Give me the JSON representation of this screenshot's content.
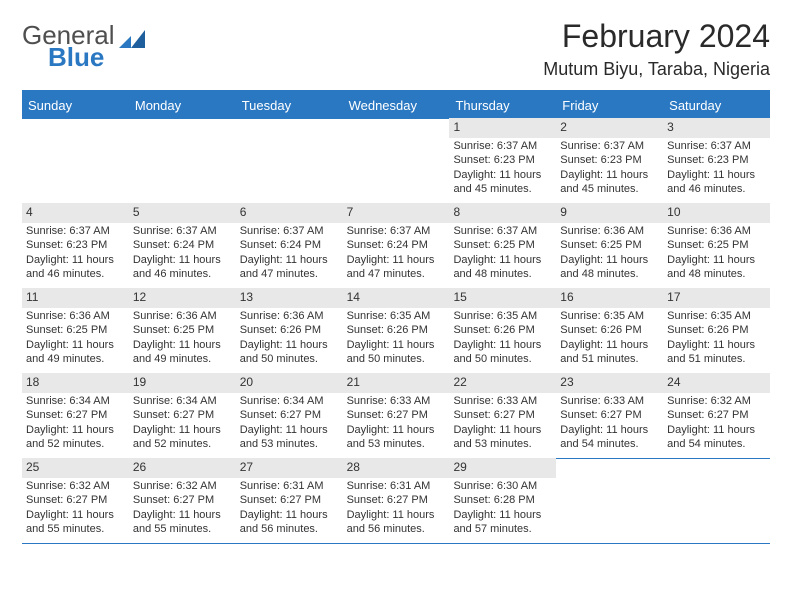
{
  "brand": {
    "part1": "General",
    "part2": "Blue"
  },
  "title": "February 2024",
  "location": "Mutum Biyu, Taraba, Nigeria",
  "colors": {
    "accent": "#2b78c2",
    "band": "#e8e8e8",
    "text": "#333333",
    "bg": "#ffffff"
  },
  "fonts": {
    "title_size": 32,
    "subtitle_size": 18,
    "header_cell_size": 13,
    "body_size": 11,
    "daynum_size": 12
  },
  "weekdays": [
    "Sunday",
    "Monday",
    "Tuesday",
    "Wednesday",
    "Thursday",
    "Friday",
    "Saturday"
  ],
  "weeks": [
    [
      {
        "n": "",
        "sr": "",
        "ss": "",
        "dl": ""
      },
      {
        "n": "",
        "sr": "",
        "ss": "",
        "dl": ""
      },
      {
        "n": "",
        "sr": "",
        "ss": "",
        "dl": ""
      },
      {
        "n": "",
        "sr": "",
        "ss": "",
        "dl": ""
      },
      {
        "n": "1",
        "sr": "6:37 AM",
        "ss": "6:23 PM",
        "dl": "11 hours and 45 minutes."
      },
      {
        "n": "2",
        "sr": "6:37 AM",
        "ss": "6:23 PM",
        "dl": "11 hours and 45 minutes."
      },
      {
        "n": "3",
        "sr": "6:37 AM",
        "ss": "6:23 PM",
        "dl": "11 hours and 46 minutes."
      }
    ],
    [
      {
        "n": "4",
        "sr": "6:37 AM",
        "ss": "6:23 PM",
        "dl": "11 hours and 46 minutes."
      },
      {
        "n": "5",
        "sr": "6:37 AM",
        "ss": "6:24 PM",
        "dl": "11 hours and 46 minutes."
      },
      {
        "n": "6",
        "sr": "6:37 AM",
        "ss": "6:24 PM",
        "dl": "11 hours and 47 minutes."
      },
      {
        "n": "7",
        "sr": "6:37 AM",
        "ss": "6:24 PM",
        "dl": "11 hours and 47 minutes."
      },
      {
        "n": "8",
        "sr": "6:37 AM",
        "ss": "6:25 PM",
        "dl": "11 hours and 48 minutes."
      },
      {
        "n": "9",
        "sr": "6:36 AM",
        "ss": "6:25 PM",
        "dl": "11 hours and 48 minutes."
      },
      {
        "n": "10",
        "sr": "6:36 AM",
        "ss": "6:25 PM",
        "dl": "11 hours and 48 minutes."
      }
    ],
    [
      {
        "n": "11",
        "sr": "6:36 AM",
        "ss": "6:25 PM",
        "dl": "11 hours and 49 minutes."
      },
      {
        "n": "12",
        "sr": "6:36 AM",
        "ss": "6:25 PM",
        "dl": "11 hours and 49 minutes."
      },
      {
        "n": "13",
        "sr": "6:36 AM",
        "ss": "6:26 PM",
        "dl": "11 hours and 50 minutes."
      },
      {
        "n": "14",
        "sr": "6:35 AM",
        "ss": "6:26 PM",
        "dl": "11 hours and 50 minutes."
      },
      {
        "n": "15",
        "sr": "6:35 AM",
        "ss": "6:26 PM",
        "dl": "11 hours and 50 minutes."
      },
      {
        "n": "16",
        "sr": "6:35 AM",
        "ss": "6:26 PM",
        "dl": "11 hours and 51 minutes."
      },
      {
        "n": "17",
        "sr": "6:35 AM",
        "ss": "6:26 PM",
        "dl": "11 hours and 51 minutes."
      }
    ],
    [
      {
        "n": "18",
        "sr": "6:34 AM",
        "ss": "6:27 PM",
        "dl": "11 hours and 52 minutes."
      },
      {
        "n": "19",
        "sr": "6:34 AM",
        "ss": "6:27 PM",
        "dl": "11 hours and 52 minutes."
      },
      {
        "n": "20",
        "sr": "6:34 AM",
        "ss": "6:27 PM",
        "dl": "11 hours and 53 minutes."
      },
      {
        "n": "21",
        "sr": "6:33 AM",
        "ss": "6:27 PM",
        "dl": "11 hours and 53 minutes."
      },
      {
        "n": "22",
        "sr": "6:33 AM",
        "ss": "6:27 PM",
        "dl": "11 hours and 53 minutes."
      },
      {
        "n": "23",
        "sr": "6:33 AM",
        "ss": "6:27 PM",
        "dl": "11 hours and 54 minutes."
      },
      {
        "n": "24",
        "sr": "6:32 AM",
        "ss": "6:27 PM",
        "dl": "11 hours and 54 minutes."
      }
    ],
    [
      {
        "n": "25",
        "sr": "6:32 AM",
        "ss": "6:27 PM",
        "dl": "11 hours and 55 minutes."
      },
      {
        "n": "26",
        "sr": "6:32 AM",
        "ss": "6:27 PM",
        "dl": "11 hours and 55 minutes."
      },
      {
        "n": "27",
        "sr": "6:31 AM",
        "ss": "6:27 PM",
        "dl": "11 hours and 56 minutes."
      },
      {
        "n": "28",
        "sr": "6:31 AM",
        "ss": "6:27 PM",
        "dl": "11 hours and 56 minutes."
      },
      {
        "n": "29",
        "sr": "6:30 AM",
        "ss": "6:28 PM",
        "dl": "11 hours and 57 minutes."
      },
      {
        "n": "",
        "sr": "",
        "ss": "",
        "dl": ""
      },
      {
        "n": "",
        "sr": "",
        "ss": "",
        "dl": ""
      }
    ]
  ],
  "labels": {
    "sunrise_prefix": "Sunrise: ",
    "sunset_prefix": "Sunset: ",
    "daylight_prefix": "Daylight: "
  }
}
